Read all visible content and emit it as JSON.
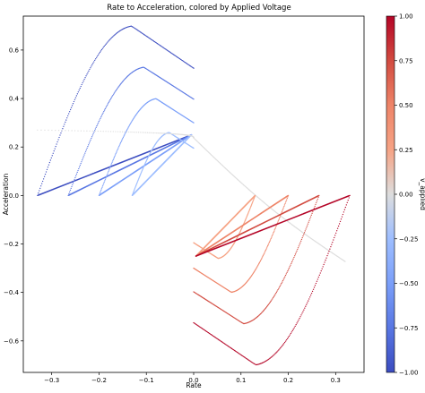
{
  "chart_data": {
    "type": "scatter",
    "title": "Rate to Acceleration, colored by Applied Voltage",
    "xlabel": "Rate",
    "ylabel": "Acceleration",
    "xlim": [
      -0.36,
      0.36
    ],
    "ylim": [
      -0.73,
      0.74
    ],
    "xticks": [
      -0.3,
      -0.2,
      -0.1,
      0.0,
      0.1,
      0.2,
      0.3
    ],
    "xtick_labels": [
      "−0.3",
      "−0.2",
      "−0.1",
      "0.0",
      "0.1",
      "0.2",
      "0.3"
    ],
    "yticks": [
      -0.6,
      -0.4,
      -0.2,
      0.0,
      0.2,
      0.4,
      0.6
    ],
    "ytick_labels": [
      "−0.6",
      "−0.4",
      "−0.2",
      "0.0",
      "0.2",
      "0.4",
      "0.6"
    ],
    "grid": false,
    "colormap": "coolwarm",
    "colorbar": {
      "label": "v_applied",
      "range": [
        -1.0,
        1.0
      ],
      "ticks": [
        -1.0,
        -0.75,
        -0.5,
        -0.25,
        0.0,
        0.25,
        0.5,
        0.75,
        1.0
      ],
      "tick_labels": [
        "−1.00",
        "−0.75",
        "−0.50",
        "−0.25",
        "0.00",
        "0.25",
        "0.50",
        "0.75",
        "1.00"
      ]
    },
    "series": [
      {
        "v": -1.0,
        "rate_end": -0.33,
        "start_accel": 0.0,
        "peak_accel": 0.7
      },
      {
        "v": -0.75,
        "rate_end": -0.265,
        "start_accel": 0.0,
        "peak_accel": 0.53
      },
      {
        "v": -0.5,
        "rate_end": -0.2,
        "start_accel": 0.0,
        "peak_accel": 0.4
      },
      {
        "v": -0.25,
        "rate_end": -0.13,
        "start_accel": 0.0,
        "peak_accel": 0.26
      },
      {
        "v": 0.0,
        "rate_end": -0.33,
        "start_accel": 0.27,
        "peak_accel": 0.27
      },
      {
        "v": 0.25,
        "rate_end": 0.13,
        "start_accel": 0.0,
        "peak_accel": -0.26
      },
      {
        "v": 0.5,
        "rate_end": 0.2,
        "start_accel": 0.0,
        "peak_accel": -0.4
      },
      {
        "v": 0.75,
        "rate_end": 0.265,
        "start_accel": 0.0,
        "peak_accel": -0.53
      },
      {
        "v": 1.0,
        "rate_end": 0.33,
        "start_accel": 0.0,
        "peak_accel": -0.7
      }
    ]
  }
}
